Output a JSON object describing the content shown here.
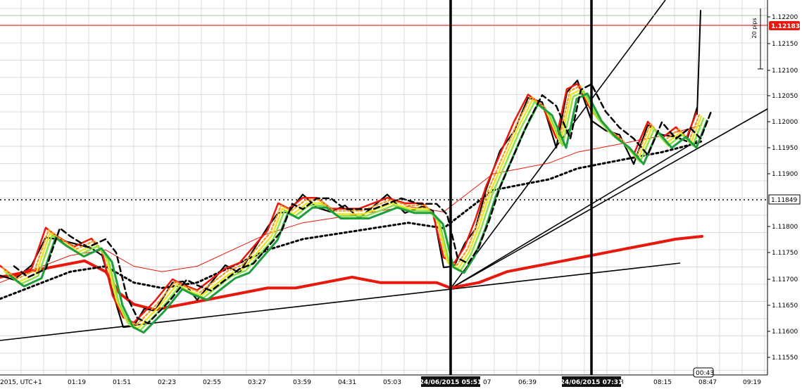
{
  "chart_data": {
    "type": "line",
    "instrument_note": "EUR/USD price chart with moving averages and trend lines",
    "y_axis": {
      "ticks": [
        "1.12200",
        "1.12150",
        "1.12100",
        "1.12050",
        "1.12000",
        "1.11950",
        "1.11900",
        "1.11800",
        "1.11750",
        "1.11700",
        "1.11650",
        "1.11600",
        "1.11550"
      ],
      "range": [
        1.1153,
        1.1222
      ]
    },
    "x_axis": {
      "ticks": [
        "2015, UTC+1",
        "01:19",
        "01:51",
        "02:23",
        "02:55",
        "03:27",
        "03:59",
        "04:31",
        "05:03",
        "07",
        "06:39",
        "8",
        "08:15",
        "08:47",
        "09:19"
      ]
    },
    "price_tags": {
      "current": "1.12183",
      "level": "1.11849",
      "scale_note": "20 pips",
      "timer": "00:43"
    },
    "markers": [
      {
        "label": "24/06/2015 05:51"
      },
      {
        "label": "24/06/2015 07:31"
      }
    ],
    "colors": {
      "price": "#000000",
      "ma_red": "#e8180c",
      "ma_orange": "#f39a1e",
      "ma_yellow": "#e8e82a",
      "ma_lightgreen": "#8ee04a",
      "ma_green": "#1e9e3c",
      "ma_teal": "#22a060",
      "grid": "#dcdcdc",
      "current_tag": "#e8180c"
    },
    "series": [
      {
        "values": [
          [
            0,
            1.11725
          ],
          [
            20,
            1.11705
          ],
          [
            45,
            1.1172
          ],
          [
            65,
            1.11795
          ],
          [
            80,
            1.1178
          ],
          [
            105,
            1.1176
          ],
          [
            130,
            1.11775
          ],
          [
            145,
            1.1175
          ],
          [
            160,
            1.1167
          ],
          [
            175,
            1.1163
          ],
          [
            190,
            1.1162
          ],
          [
            205,
            1.1164
          ],
          [
            220,
            1.1166
          ],
          [
            245,
            1.117
          ],
          [
            260,
            1.1169
          ],
          [
            280,
            1.1168
          ],
          [
            300,
            1.117
          ],
          [
            320,
            1.1172
          ],
          [
            340,
            1.1173
          ],
          [
            360,
            1.1176
          ],
          [
            380,
            1.1179
          ],
          [
            395,
            1.1184
          ],
          [
            410,
            1.1183
          ],
          [
            430,
            1.1185
          ],
          [
            450,
            1.1185
          ],
          [
            470,
            1.1183
          ],
          [
            490,
            1.1183
          ],
          [
            510,
            1.1183
          ],
          [
            530,
            1.1184
          ],
          [
            550,
            1.1185
          ],
          [
            575,
            1.1184
          ],
          [
            600,
            1.1184
          ],
          [
            615,
            1.1182
          ],
          [
            630,
            1.1174
          ],
          [
            645,
            1.1173
          ],
          [
            660,
            1.1176
          ],
          [
            675,
            1.1181
          ],
          [
            690,
            1.1187
          ],
          [
            710,
            1.1193
          ],
          [
            730,
            1.1199
          ],
          [
            750,
            1.1204
          ],
          [
            770,
            1.1202
          ],
          [
            790,
            1.1196
          ],
          [
            805,
            1.1205
          ],
          [
            820,
            1.1206
          ],
          [
            840,
            1.1201
          ],
          [
            860,
            1.1198
          ],
          [
            880,
            1.1196
          ],
          [
            900,
            1.1193
          ],
          [
            920,
            1.1199
          ],
          [
            940,
            1.1196
          ],
          [
            960,
            1.1198
          ],
          [
            975,
            1.1196
          ],
          [
            990,
            1.1201
          ]
        ]
      },
      {
        "values": [
          [
            0,
            1.1171
          ],
          [
            40,
            1.1172
          ],
          [
            80,
            1.1173
          ],
          [
            120,
            1.1174
          ],
          [
            150,
            1.1172
          ],
          [
            170,
            1.1168
          ],
          [
            190,
            1.1166
          ],
          [
            220,
            1.1165
          ],
          [
            260,
            1.1166
          ],
          [
            300,
            1.1167
          ],
          [
            340,
            1.1168
          ],
          [
            380,
            1.1169
          ],
          [
            420,
            1.1169
          ],
          [
            460,
            1.117
          ],
          [
            500,
            1.1171
          ],
          [
            540,
            1.117
          ],
          [
            580,
            1.117
          ],
          [
            620,
            1.117
          ],
          [
            640,
            1.1169
          ],
          [
            680,
            1.117
          ],
          [
            720,
            1.1172
          ],
          [
            760,
            1.1173
          ],
          [
            800,
            1.1174
          ],
          [
            840,
            1.1175
          ],
          [
            880,
            1.1176
          ],
          [
            920,
            1.1177
          ],
          [
            960,
            1.1178
          ],
          [
            997,
            1.11785
          ]
        ]
      },
      {
        "values": [
          [
            0,
            1.1167
          ],
          [
            60,
            1.117
          ],
          [
            100,
            1.1172
          ],
          [
            150,
            1.1173
          ],
          [
            190,
            1.117
          ],
          [
            230,
            1.1169
          ],
          [
            280,
            1.117
          ],
          [
            330,
            1.1173
          ],
          [
            380,
            1.1176
          ],
          [
            430,
            1.1178
          ],
          [
            480,
            1.1179
          ],
          [
            530,
            1.118
          ],
          [
            580,
            1.1181
          ],
          [
            630,
            1.118
          ],
          [
            660,
            1.1183
          ],
          [
            700,
            1.1187
          ],
          [
            740,
            1.1188
          ],
          [
            780,
            1.1189
          ],
          [
            820,
            1.1191
          ],
          [
            860,
            1.1192
          ],
          [
            900,
            1.1193
          ],
          [
            940,
            1.1194
          ],
          [
            970,
            1.1195
          ],
          [
            997,
            1.1196
          ]
        ]
      }
    ]
  }
}
